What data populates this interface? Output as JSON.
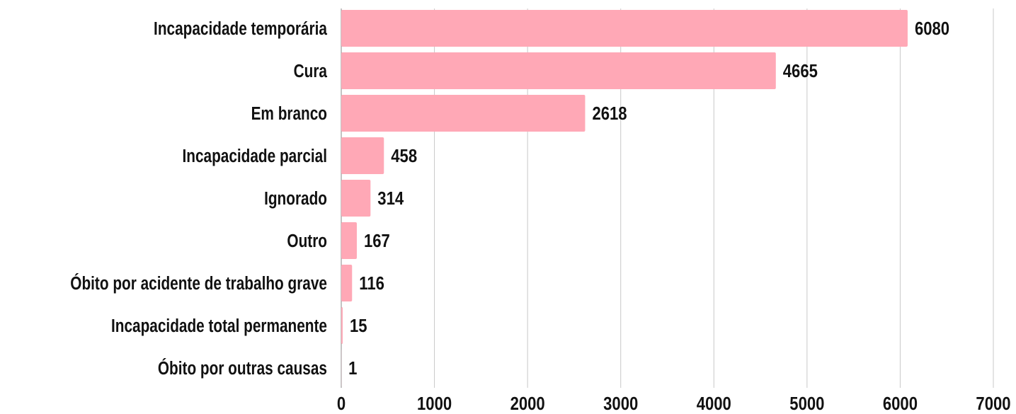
{
  "chart_data": {
    "type": "barh",
    "categories": [
      "Incapacidade temporária",
      "Cura",
      "Em branco",
      "Incapacidade parcial",
      "Ignorado",
      "Outro",
      "Óbito por acidente de trabalho grave",
      "Incapacidade total permanente",
      "Óbito por outras causas"
    ],
    "values": [
      6080,
      4665,
      2618,
      458,
      314,
      167,
      116,
      15,
      1
    ],
    "color": "#ffa8b6",
    "xlim": [
      0,
      7000
    ],
    "xticks": [
      0,
      1000,
      2000,
      3000,
      4000,
      5000,
      6000,
      7000
    ],
    "grid": true
  }
}
